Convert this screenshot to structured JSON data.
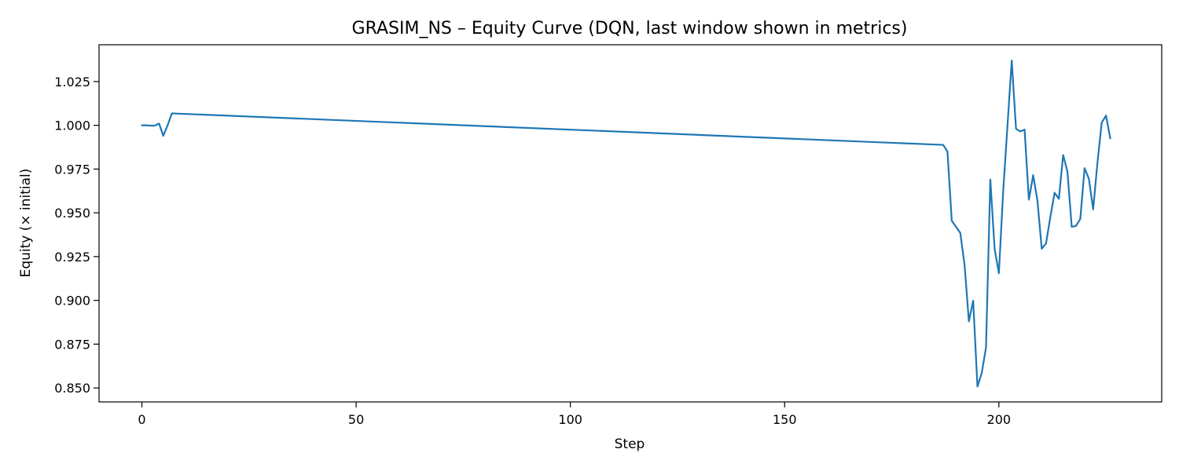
{
  "chart_data": {
    "type": "line",
    "title": "GRASIM_NS – Equity Curve (DQN, last window shown in metrics)",
    "xlabel": "Step",
    "ylabel": "Equity (× initial)",
    "xlim": [
      -10,
      238
    ],
    "ylim": [
      0.842,
      1.046
    ],
    "xticks": [
      0,
      50,
      100,
      150,
      200
    ],
    "yticks": [
      0.85,
      0.875,
      0.9,
      0.925,
      0.95,
      0.975,
      1.0,
      1.025
    ],
    "ytick_labels": [
      "0.850",
      "0.875",
      "0.900",
      "0.925",
      "0.950",
      "0.975",
      "1.000",
      "1.025"
    ],
    "grid": false,
    "colors": {
      "series": "#1f77b4"
    },
    "series": [
      {
        "x": [
          0,
          1,
          2,
          3,
          4,
          5,
          6,
          7,
          187,
          188,
          189,
          190,
          191,
          192,
          193,
          194,
          195,
          196,
          197,
          198,
          199,
          200,
          201,
          202,
          203,
          204,
          205,
          206,
          207,
          208,
          209,
          210,
          211,
          212,
          213,
          214,
          215,
          216,
          217,
          218,
          219,
          220,
          221,
          222,
          223,
          224,
          225,
          226
        ],
        "y": [
          1.0,
          1.0,
          0.9998,
          0.9998,
          1.001,
          0.994,
          1.0,
          1.0068,
          0.9888,
          0.985,
          0.9455,
          0.942,
          0.9385,
          0.92,
          0.888,
          0.8998,
          0.8508,
          0.8585,
          0.873,
          0.969,
          0.9295,
          0.9155,
          0.962,
          0.9995,
          1.037,
          0.998,
          0.9965,
          0.9975,
          0.9575,
          0.9715,
          0.957,
          0.9295,
          0.9325,
          0.9475,
          0.9615,
          0.958,
          0.983,
          0.9735,
          0.942,
          0.9425,
          0.9465,
          0.9755,
          0.9695,
          0.952,
          0.9785,
          1.0015,
          1.0055,
          0.9925
        ]
      }
    ]
  }
}
